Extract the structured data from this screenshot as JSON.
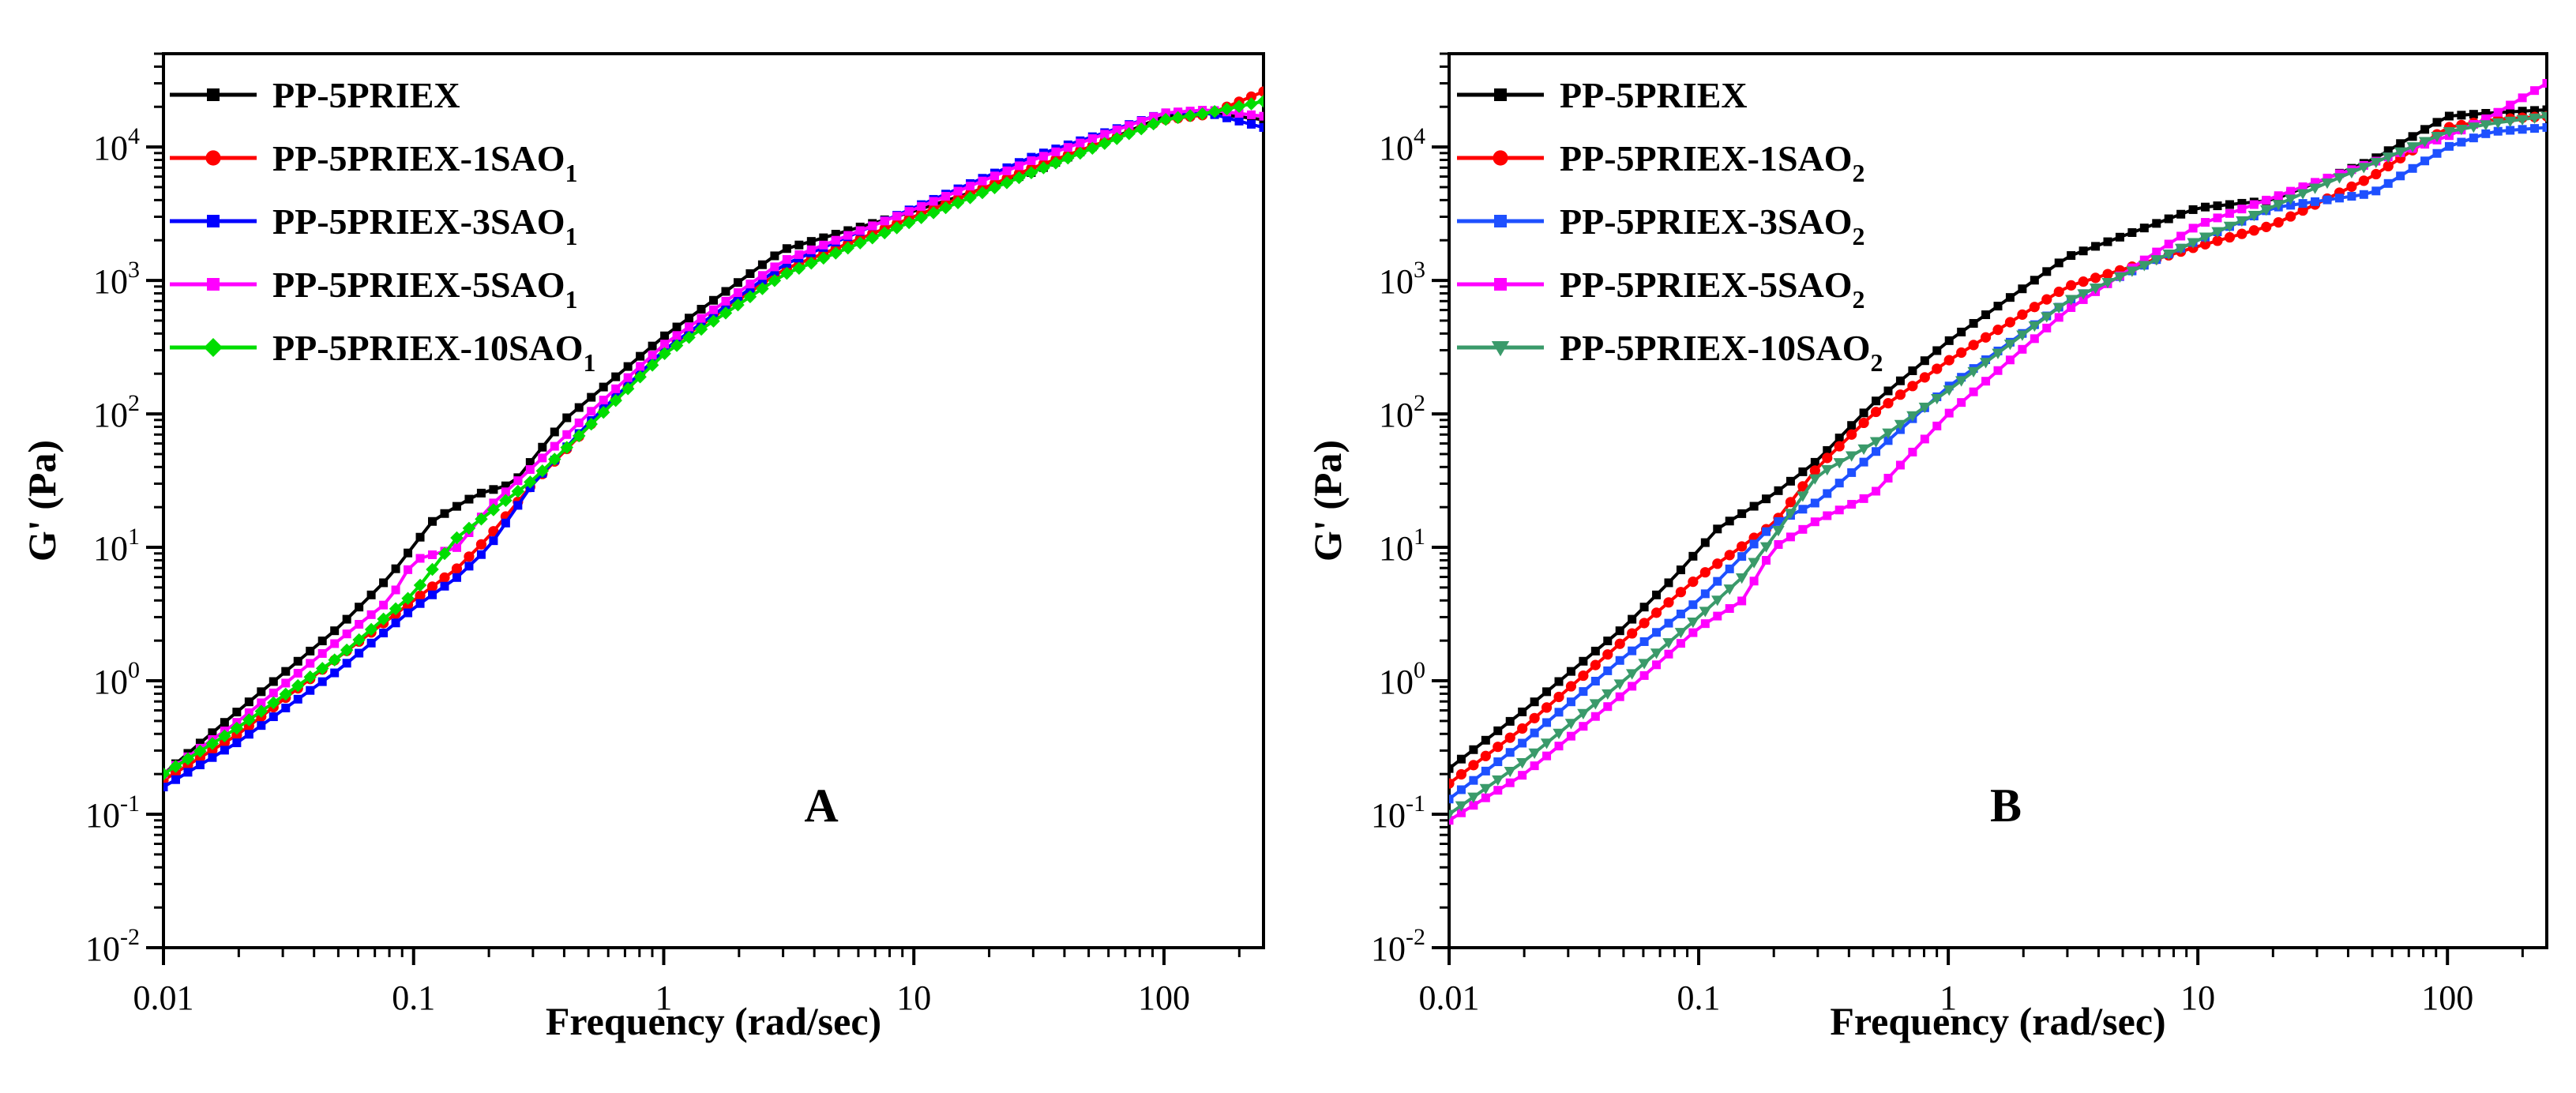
{
  "chart_data": [
    {
      "panel": "A",
      "type": "line",
      "panel_label": "A",
      "xlabel": "Frequency (rad/sec)",
      "ylabel": "G' (Pa)",
      "xscale": "log",
      "yscale": "log",
      "xlim": [
        0.01,
        250
      ],
      "ylim": [
        0.01,
        50000
      ],
      "x_tick_labels": [
        "0.01",
        "0.1",
        "1",
        "10",
        "100"
      ],
      "y_tick_labels": [
        {
          "base": "10",
          "exp": "-2"
        },
        {
          "base": "10",
          "exp": "-1"
        },
        {
          "base": "10",
          "exp": "0"
        },
        {
          "base": "10",
          "exp": "1"
        },
        {
          "base": "10",
          "exp": "2"
        },
        {
          "base": "10",
          "exp": "3"
        },
        {
          "base": "10",
          "exp": "4"
        }
      ],
      "legend_position": "top-left",
      "series": [
        {
          "name": "PP-5PRIEX",
          "sub": "",
          "color": "#000000",
          "marker": "square",
          "x": [
            0.01,
            0.02,
            0.05,
            0.08,
            0.12,
            0.18,
            0.25,
            0.4,
            1,
            3,
            10,
            30,
            100,
            150,
            250
          ],
          "y": [
            0.2,
            0.6,
            2.5,
            6,
            16,
            25,
            30,
            90,
            380,
            1700,
            3300,
            6500,
            17000,
            18000,
            16000
          ]
        },
        {
          "name": "PP-5PRIEX-1SAO",
          "sub": "1",
          "color": "#ff0000",
          "marker": "circle",
          "x": [
            0.01,
            0.02,
            0.05,
            0.1,
            0.15,
            0.2,
            0.3,
            0.5,
            1,
            3,
            10,
            30,
            100,
            150,
            250
          ],
          "y": [
            0.18,
            0.4,
            1.5,
            4,
            7,
            12,
            30,
            80,
            300,
            1200,
            3000,
            7000,
            16000,
            17500,
            26000
          ]
        },
        {
          "name": "PP-5PRIEX-3SAO",
          "sub": "1",
          "color": "#0000ff",
          "marker": "square",
          "x": [
            0.01,
            0.02,
            0.05,
            0.1,
            0.15,
            0.2,
            0.3,
            0.5,
            1,
            3,
            10,
            30,
            100,
            150,
            250
          ],
          "y": [
            0.16,
            0.35,
            1.2,
            3.5,
            6,
            10,
            30,
            85,
            300,
            1300,
            3500,
            8500,
            18000,
            18000,
            14000
          ]
        },
        {
          "name": "PP-5PRIEX-5SAO",
          "sub": "1",
          "color": "#ff00ff",
          "marker": "square",
          "x": [
            0.01,
            0.02,
            0.05,
            0.08,
            0.1,
            0.15,
            0.2,
            0.3,
            0.5,
            1,
            3,
            10,
            30,
            100,
            150,
            250
          ],
          "y": [
            0.2,
            0.5,
            2.0,
            4,
            8,
            10,
            20,
            40,
            100,
            330,
            1400,
            3400,
            8000,
            18000,
            19000,
            17000
          ]
        },
        {
          "name": "PP-5PRIEX-10SAO",
          "sub": "1",
          "color": "#00dd00",
          "marker": "diamond",
          "x": [
            0.01,
            0.02,
            0.05,
            0.1,
            0.15,
            0.2,
            0.3,
            0.5,
            1,
            3,
            10,
            30,
            100,
            150,
            250
          ],
          "y": [
            0.2,
            0.45,
            1.5,
            4.5,
            12,
            18,
            32,
            80,
            280,
            1100,
            2800,
            6500,
            16000,
            18000,
            22000
          ]
        }
      ]
    },
    {
      "panel": "B",
      "type": "line",
      "panel_label": "B",
      "xlabel": "Frequency (rad/sec)",
      "ylabel": "G' (Pa)",
      "xscale": "log",
      "yscale": "log",
      "xlim": [
        0.01,
        250
      ],
      "ylim": [
        0.01,
        50000
      ],
      "x_tick_labels": [
        "0.01",
        "0.1",
        "1",
        "10",
        "100"
      ],
      "y_tick_labels": [
        {
          "base": "10",
          "exp": "-2"
        },
        {
          "base": "10",
          "exp": "-1"
        },
        {
          "base": "10",
          "exp": "0"
        },
        {
          "base": "10",
          "exp": "1"
        },
        {
          "base": "10",
          "exp": "2"
        },
        {
          "base": "10",
          "exp": "3"
        },
        {
          "base": "10",
          "exp": "4"
        }
      ],
      "legend_position": "top-left",
      "series": [
        {
          "name": "PP-5PRIEX",
          "sub": "",
          "color": "#000000",
          "marker": "square",
          "x": [
            0.01,
            0.02,
            0.05,
            0.08,
            0.12,
            0.2,
            0.3,
            0.5,
            1,
            3,
            10,
            20,
            50,
            100,
            150,
            250
          ],
          "y": [
            0.22,
            0.6,
            2.5,
            6,
            14,
            25,
            45,
            120,
            350,
            1500,
            3500,
            4000,
            8000,
            17000,
            18000,
            19000
          ]
        },
        {
          "name": "PP-5PRIEX-1SAO",
          "sub": "2",
          "color": "#ff0000",
          "marker": "circle",
          "x": [
            0.01,
            0.02,
            0.05,
            0.1,
            0.2,
            0.3,
            0.5,
            1,
            3,
            10,
            20,
            50,
            100,
            150,
            250
          ],
          "y": [
            0.17,
            0.45,
            2,
            6,
            15,
            40,
            100,
            250,
            900,
            1800,
            2600,
            6000,
            14000,
            16000,
            17000
          ]
        },
        {
          "name": "PP-5PRIEX-3SAO",
          "sub": "2",
          "color": "#1e50ff",
          "marker": "square",
          "x": [
            0.01,
            0.02,
            0.05,
            0.1,
            0.2,
            0.3,
            0.5,
            1,
            3,
            10,
            20,
            50,
            100,
            150,
            250
          ],
          "y": [
            0.13,
            0.35,
            1.5,
            4,
            15,
            22,
            50,
            160,
            700,
            2000,
            3500,
            4500,
            10000,
            13000,
            14000
          ]
        },
        {
          "name": "PP-5PRIEX-5SAO",
          "sub": "2",
          "color": "#ff00ff",
          "marker": "square",
          "x": [
            0.01,
            0.02,
            0.05,
            0.1,
            0.15,
            0.2,
            0.3,
            0.5,
            1,
            3,
            10,
            30,
            100,
            150,
            250
          ],
          "y": [
            0.09,
            0.2,
            0.8,
            2.5,
            4,
            10,
            16,
            25,
            100,
            600,
            2600,
            5500,
            12000,
            17000,
            30000
          ]
        },
        {
          "name": "PP-5PRIEX-10SAO",
          "sub": "2",
          "color": "#3a9a6a",
          "marker": "triangle-down",
          "x": [
            0.01,
            0.02,
            0.05,
            0.1,
            0.15,
            0.2,
            0.3,
            0.5,
            1,
            3,
            10,
            30,
            100,
            150,
            250
          ],
          "y": [
            0.1,
            0.25,
            1.0,
            3,
            6,
            12,
            35,
            60,
            150,
            700,
            2000,
            5000,
            13000,
            15000,
            17000
          ]
        }
      ]
    }
  ]
}
